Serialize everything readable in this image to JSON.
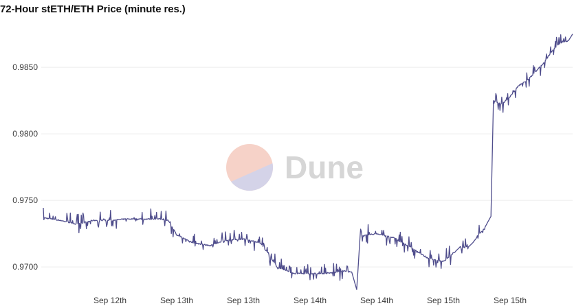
{
  "chart": {
    "title": "72-Hour stETH/ETH Price (minute res.)"
  },
  "watermark": {
    "text": "Dune",
    "colors": [
      "#f6d2c8",
      "#d4d3e8"
    ]
  },
  "chart_data": {
    "type": "line",
    "title": "72-Hour stETH/ETH Price (minute res.)",
    "xlabel": "",
    "ylabel": "",
    "ylim": [
      0.9682,
      0.9882
    ],
    "yticks": [
      0.97,
      0.975,
      0.98,
      0.985
    ],
    "ytick_labels": [
      "0.9700",
      "0.9750",
      "0.9800",
      "0.9850"
    ],
    "x_tick_labels": [
      "Sep 12th",
      "Sep 13th",
      "Sep 13th",
      "Sep 14th",
      "Sep 14th",
      "Sep 15th",
      "Sep 15th"
    ],
    "x_tick_hours": [
      8,
      16,
      24,
      32,
      40,
      48,
      56
    ],
    "x_range_hours": [
      0,
      63.5
    ],
    "grid": true,
    "line_color": "#4f4d8c",
    "series": [
      {
        "x_hours": [
          0,
          2,
          4,
          6,
          8,
          10,
          12,
          14,
          15,
          16,
          18,
          20,
          22,
          24,
          26,
          27,
          28,
          30,
          32,
          34,
          36,
          37,
          37.6,
          38,
          40,
          42,
          44,
          46,
          48,
          49.5,
          50,
          51,
          51.5,
          52,
          53,
          53.7,
          54,
          55,
          56,
          57,
          58,
          59,
          60,
          61,
          62,
          63,
          63.5
        ],
        "values": [
          0.9737,
          0.9735,
          0.9732,
          0.9735,
          0.9735,
          0.9736,
          0.9736,
          0.9736,
          0.9735,
          0.9724,
          0.9718,
          0.9716,
          0.972,
          0.9721,
          0.9718,
          0.971,
          0.97,
          0.9695,
          0.9695,
          0.9695,
          0.9697,
          0.9696,
          0.9683,
          0.9723,
          0.9725,
          0.9722,
          0.9715,
          0.9707,
          0.9704,
          0.9712,
          0.9715,
          0.9715,
          0.9718,
          0.9722,
          0.973,
          0.9738,
          0.9825,
          0.9822,
          0.9828,
          0.9836,
          0.984,
          0.9846,
          0.9853,
          0.9862,
          0.9868,
          0.987,
          0.9875
        ]
      }
    ]
  }
}
